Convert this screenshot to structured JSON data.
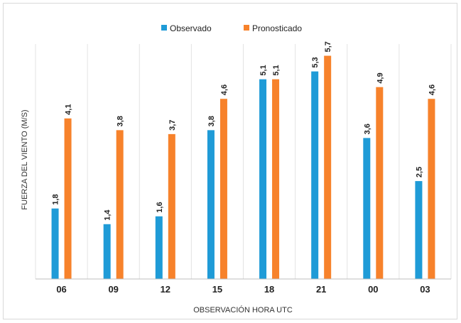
{
  "chart_data": {
    "type": "bar",
    "categories": [
      "06",
      "09",
      "12",
      "15",
      "18",
      "21",
      "00",
      "03"
    ],
    "series": [
      {
        "name": "Observado",
        "values": [
          1.8,
          1.4,
          1.6,
          3.8,
          5.1,
          5.3,
          3.6,
          2.5
        ],
        "labels": [
          "1,8",
          "1,4",
          "1,6",
          "3,8",
          "5,1",
          "5,3",
          "3,6",
          "2,5"
        ],
        "color": "#1f9bd7"
      },
      {
        "name": "Pronosticado",
        "values": [
          4.1,
          3.8,
          3.7,
          4.6,
          5.1,
          5.7,
          4.9,
          4.6
        ],
        "labels": [
          "4,1",
          "3,8",
          "3,7",
          "4,6",
          "5,1",
          "5,7",
          "4,9",
          "4,6"
        ],
        "color": "#f7822b"
      }
    ],
    "title": "",
    "xlabel": "OBSERVACIÓN HORA UTC",
    "ylabel": "FUERZA DEL VIENTO (M/S)",
    "ylim": [
      0,
      6
    ],
    "grid": "vertical separators between categories",
    "legend": "top-center"
  }
}
